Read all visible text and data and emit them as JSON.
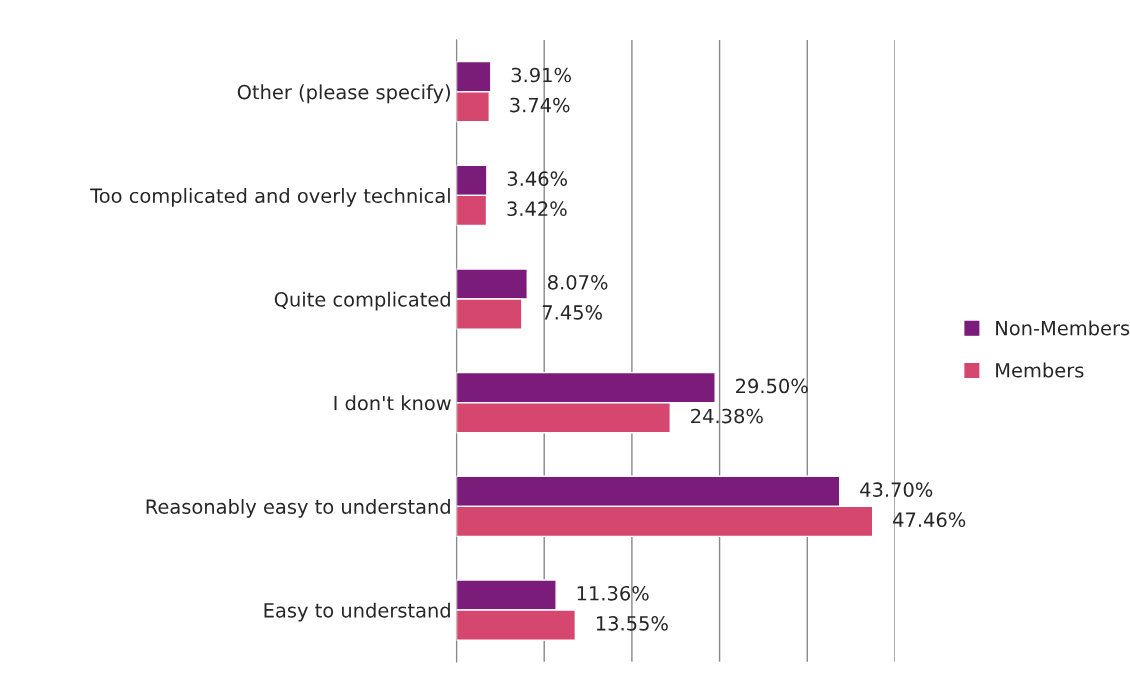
{
  "chart_data": {
    "type": "bar",
    "orientation": "horizontal",
    "categories": [
      "Other (please specify)",
      "Too complicated and overly technical",
      "Quite complicated",
      "I don't know",
      "Reasonably easy to understand",
      "Easy to understand"
    ],
    "series": [
      {
        "name": "Non-Members",
        "color": "#7b1c7a",
        "values": [
          3.91,
          3.46,
          8.07,
          29.5,
          43.7,
          11.36
        ],
        "value_labels": [
          "3.91%",
          "3.46%",
          "8.07%",
          "29.50%",
          "43.70%",
          "11.36%"
        ]
      },
      {
        "name": "Members",
        "color": "#d6476f",
        "values": [
          3.74,
          3.42,
          7.45,
          24.38,
          47.46,
          13.55
        ],
        "value_labels": [
          "3.74%",
          "3.42%",
          "7.45%",
          "24.38%",
          "47.46%",
          "13.55%"
        ]
      }
    ],
    "xlim": [
      0,
      50
    ],
    "xticks": [
      {
        "value": 0,
        "label": null
      },
      {
        "value": 10,
        "label": null
      },
      {
        "value": 20,
        "label": null
      },
      {
        "value": 30,
        "label": null
      },
      {
        "value": 40,
        "label": null
      },
      {
        "value": 50,
        "label": null
      }
    ],
    "grid": "x",
    "legend": "right",
    "tick_labels": "y"
  }
}
